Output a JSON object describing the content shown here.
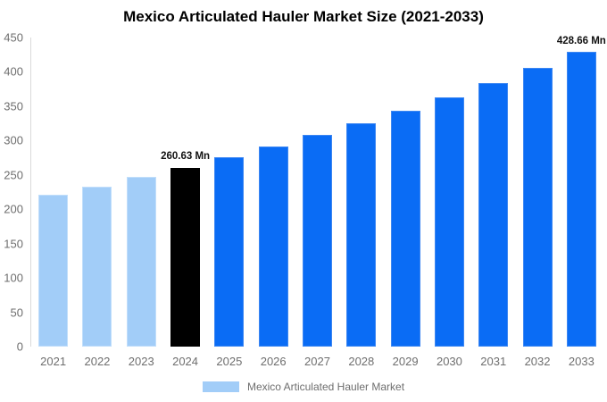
{
  "chart_data": {
    "type": "bar",
    "title": "Mexico Articulated Hauler Market Size (2021-2033)",
    "categories": [
      "2021",
      "2022",
      "2023",
      "2024",
      "2025",
      "2026",
      "2027",
      "2028",
      "2029",
      "2030",
      "2031",
      "2032",
      "2033"
    ],
    "values": [
      220.8,
      233.35,
      246.61,
      260.63,
      275.45,
      291.1,
      307.65,
      325.13,
      343.62,
      363.15,
      383.79,
      405.6,
      428.66
    ],
    "value_unit": "Mn",
    "xlabel": "",
    "ylabel": "",
    "ylim": [
      0,
      450
    ],
    "yticks": [
      0,
      50,
      100,
      150,
      200,
      250,
      300,
      350,
      400,
      450
    ],
    "grid": false,
    "bar_colors": [
      "#a2cdf8",
      "#a2cdf8",
      "#a2cdf8",
      "#000000",
      "#0a6cf5",
      "#0a6cf5",
      "#0a6cf5",
      "#0a6cf5",
      "#0a6cf5",
      "#0a6cf5",
      "#0a6cf5",
      "#0a6cf5",
      "#0a6cf5"
    ],
    "bar_border_colors": [
      "#c1defb",
      "#c1defb",
      "#c1defb",
      "#000000",
      "#3d87f2",
      "#3d87f2",
      "#3d87f2",
      "#3d87f2",
      "#3d87f2",
      "#3d87f2",
      "#3d87f2",
      "#3d87f2",
      "#3d87f2"
    ],
    "annotations": [
      {
        "index": 3,
        "text": "260.63 Mn"
      },
      {
        "index": 12,
        "text": "428.66 Mn"
      }
    ],
    "legend": {
      "position": "bottom",
      "entries": [
        {
          "label": "Mexico Articulated Hauler Market",
          "color": "#a2cdf8"
        }
      ]
    },
    "colors": {
      "axis_text": "#6e6e6e",
      "title_text": "#000000",
      "axis_line": "#d9d9d9",
      "annotation_text": "#111111",
      "background": "#ffffff"
    }
  }
}
